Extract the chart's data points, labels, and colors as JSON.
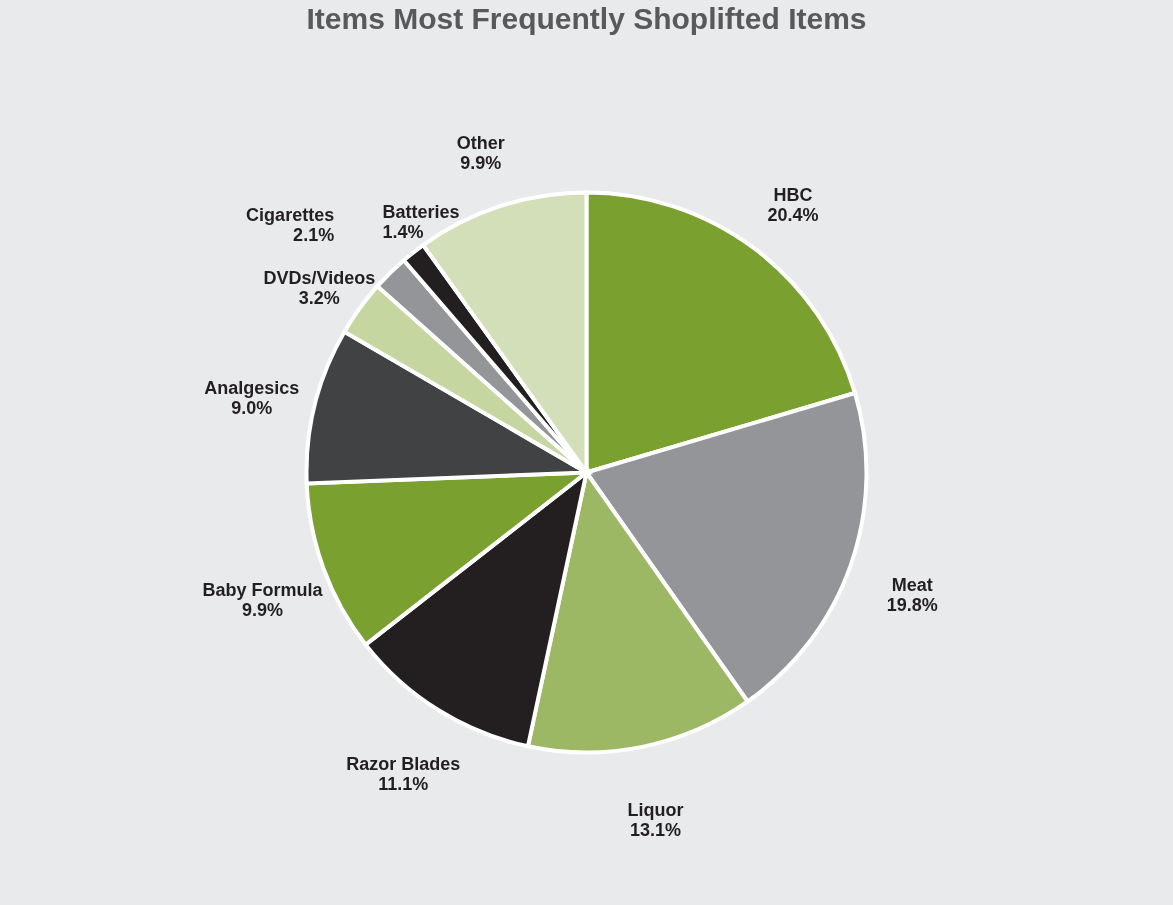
{
  "chart_data": {
    "type": "pie",
    "title": "Items Most Frequently Shoplifted Items",
    "categories": [
      "HBC",
      "Meat",
      "Liquor",
      "Razor Blades",
      "Baby Formula",
      "Analgesics",
      "DVDs/Videos",
      "Cigarettes",
      "Batteries",
      "Other"
    ],
    "values": [
      20.4,
      19.8,
      13.1,
      11.1,
      9.9,
      9.0,
      3.2,
      2.1,
      1.4,
      9.9
    ],
    "value_labels": [
      "20.4%",
      "19.8%",
      "13.1%",
      "11.1%",
      "9.9%",
      "9.0%",
      "3.2%",
      "2.1%",
      "1.4%",
      "9.9%"
    ],
    "colors": [
      "#7aa12f",
      "#939598",
      "#9cb865",
      "#231f20",
      "#7aa12f",
      "#414244",
      "#c5d6a0",
      "#939598",
      "#231f20",
      "#d2dfb8"
    ]
  }
}
